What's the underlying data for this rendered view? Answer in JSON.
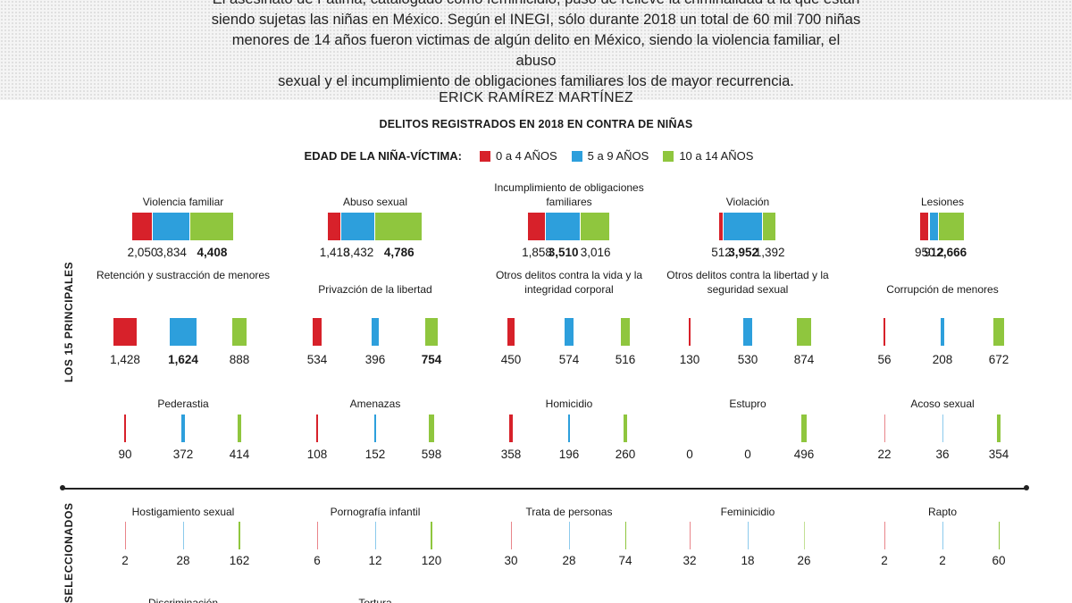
{
  "intro": {
    "line1": "El asesinato de Fátima, catalogado como feminicidio, puso de relieve la criminalidad a la que están",
    "line2": "siendo sujetas las niñas en México. Según el INEGI, sólo durante 2018 un total de 60 mil 700 niñas",
    "line3": "menores de 14 años fueron victimas de algún delito en México, siendo la violencia familiar, el abuso",
    "line4": "sexual y el incumplimiento de obligaciones familiares los de mayor recurrencia."
  },
  "author": "ERICK RAMÍREZ MARTÍNEZ",
  "side_labels": {
    "top": "LOS 15 PRINCIPALES",
    "bottom": "SELECCIONADOS"
  },
  "legend": {
    "title": "EDAD DE LA NIÑA-VÍCTIMA:",
    "items": [
      {
        "label": "0 a 4 AÑOS",
        "color": "#d7212a"
      },
      {
        "label": "5 a 9 AÑOS",
        "color": "#2d9fdc"
      },
      {
        "label": "10 a 14 AÑOS",
        "color": "#8fc63e"
      }
    ]
  },
  "chart_data": {
    "type": "bar",
    "title": "DELITOS REGISTRADOS EN 2018 EN CONTRA DE NIÑAS",
    "categories": [
      "0 a 4 AÑOS",
      "5 a 9 AÑOS",
      "10 a 14 AÑOS"
    ],
    "panels": [
      {
        "name": "Violencia familiar",
        "values": [
          2050,
          3834,
          4408
        ],
        "labels": [
          "2,050",
          "3,834",
          "4,408"
        ],
        "bold": 2
      },
      {
        "name": "Abuso sexual",
        "values": [
          1418,
          3432,
          4786
        ],
        "labels": [
          "1,418",
          "3,432",
          "4,786"
        ],
        "bold": 2
      },
      {
        "name": "Incumplimiento de obligaciones familiares",
        "values": [
          1858,
          3510,
          3016
        ],
        "labels": [
          "1,858",
          "3,510",
          "3,016"
        ],
        "bold": 1
      },
      {
        "name": "Violación",
        "values": [
          512,
          3952,
          1392
        ],
        "labels": [
          "512",
          "3,952",
          "1,392"
        ],
        "bold": 1
      },
      {
        "name": "Lesiones",
        "values": [
          950,
          912,
          2666
        ],
        "labels": [
          "950",
          "912",
          "2,666"
        ],
        "bold": 2
      },
      {
        "name": "Retención y sustracción de menores",
        "values": [
          1428,
          1624,
          888
        ],
        "labels": [
          "1,428",
          "1,624",
          "888"
        ],
        "bold": 1
      },
      {
        "name": "Privazción de la libertad",
        "values": [
          534,
          396,
          754
        ],
        "labels": [
          "534",
          "396",
          "754"
        ],
        "bold": 2
      },
      {
        "name": "Otros delitos contra la vida y la integridad corporal",
        "values": [
          450,
          574,
          516
        ],
        "labels": [
          "450",
          "574",
          "516"
        ],
        "bold": -1
      },
      {
        "name": "Otros delitos contra la libertad y la seguridad sexual",
        "values": [
          130,
          530,
          874
        ],
        "labels": [
          "130",
          "530",
          "874"
        ],
        "bold": -1
      },
      {
        "name": "Corrupción de menores",
        "values": [
          56,
          208,
          672
        ],
        "labels": [
          "56",
          "208",
          "672"
        ],
        "bold": -1
      },
      {
        "name": "Pederastia",
        "values": [
          90,
          372,
          414
        ],
        "labels": [
          "90",
          "372",
          "414"
        ],
        "bold": -1
      },
      {
        "name": "Amenazas",
        "values": [
          108,
          152,
          598
        ],
        "labels": [
          "108",
          "152",
          "598"
        ],
        "bold": -1
      },
      {
        "name": "Homicidio",
        "values": [
          358,
          196,
          260
        ],
        "labels": [
          "358",
          "196",
          "260"
        ],
        "bold": -1
      },
      {
        "name": "Estupro",
        "values": [
          0,
          0,
          496
        ],
        "labels": [
          "0",
          "0",
          "496"
        ],
        "bold": -1
      },
      {
        "name": "Acoso sexual",
        "values": [
          22,
          36,
          354
        ],
        "labels": [
          "22",
          "36",
          "354"
        ],
        "bold": -1
      },
      {
        "name": "Hostigamiento sexual",
        "values": [
          2,
          28,
          162
        ],
        "labels": [
          "2",
          "28",
          "162"
        ],
        "bold": -1
      },
      {
        "name": "Pornografía infantil",
        "values": [
          6,
          12,
          120
        ],
        "labels": [
          "6",
          "12",
          "120"
        ],
        "bold": -1
      },
      {
        "name": "Trata de personas",
        "values": [
          30,
          28,
          74
        ],
        "labels": [
          "30",
          "28",
          "74"
        ],
        "bold": -1
      },
      {
        "name": "Feminicidio",
        "values": [
          32,
          18,
          26
        ],
        "labels": [
          "32",
          "18",
          "26"
        ],
        "bold": -1
      },
      {
        "name": "Rapto",
        "values": [
          2,
          2,
          60
        ],
        "labels": [
          "2",
          "2",
          "60"
        ],
        "bold": -1
      },
      {
        "name": "Discriminación",
        "values": [],
        "labels": [],
        "bold": -1
      },
      {
        "name": "Tortura",
        "values": [],
        "labels": [],
        "bold": -1
      }
    ]
  }
}
